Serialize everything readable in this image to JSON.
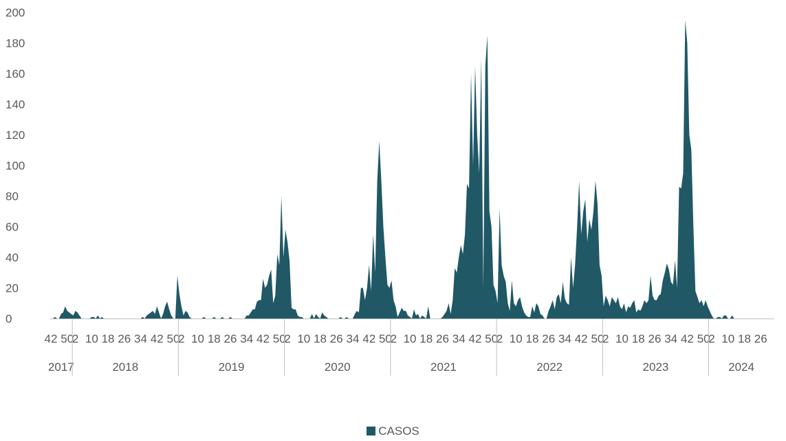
{
  "colors": {
    "series": "#205866",
    "axis": "#bfbfbf",
    "text": "#595959"
  },
  "chart_data": {
    "type": "area",
    "title": "",
    "xlabel": "",
    "ylabel": "",
    "ylim": [
      0,
      200
    ],
    "yticks": [
      "0",
      "20",
      "40",
      "60",
      "80",
      "100",
      "120",
      "140",
      "160",
      "180",
      "200"
    ],
    "grid": false,
    "legend_position": "bottom",
    "x_start": {
      "year": 2017,
      "week": 42
    },
    "week_tick_step": 8,
    "years": [
      {
        "label": "2017",
        "weeks": 11
      },
      {
        "label": "2018",
        "weeks": 52
      },
      {
        "label": "2019",
        "weeks": 52
      },
      {
        "label": "2020",
        "weeks": 52
      },
      {
        "label": "2021",
        "weeks": 52
      },
      {
        "label": "2022",
        "weeks": 52
      },
      {
        "label": "2023",
        "weeks": 52
      },
      {
        "label": "2024",
        "weeks": 32
      }
    ],
    "series": [
      {
        "name": "CASOS",
        "values": [
          0,
          0,
          1,
          0,
          0,
          3,
          4,
          8,
          5,
          4,
          3,
          2,
          5,
          4,
          2,
          0,
          0,
          0,
          0,
          0,
          1,
          1,
          0,
          2,
          0,
          1,
          0,
          0,
          0,
          0,
          0,
          0,
          0,
          0,
          0,
          0,
          0,
          0,
          0,
          0,
          0,
          0,
          0,
          0,
          0,
          1,
          0,
          2,
          3,
          4,
          5,
          3,
          8,
          4,
          0,
          3,
          8,
          11,
          6,
          2,
          0,
          0,
          28,
          16,
          8,
          2,
          5,
          4,
          1,
          0,
          0,
          0,
          0,
          0,
          0,
          1,
          0,
          0,
          0,
          0,
          1,
          0,
          0,
          0,
          1,
          0,
          0,
          0,
          1,
          0,
          0,
          0,
          0,
          0,
          0,
          0,
          2,
          2,
          4,
          6,
          6,
          11,
          12,
          12,
          26,
          20,
          22,
          28,
          32,
          10,
          15,
          42,
          35,
          80,
          40,
          58,
          50,
          38,
          7,
          6,
          6,
          2,
          1,
          1,
          0,
          0,
          0,
          0,
          3,
          0,
          3,
          1,
          0,
          4,
          2,
          1,
          0,
          0,
          0,
          0,
          0,
          0,
          1,
          0,
          0,
          1,
          0,
          0,
          0,
          3,
          5,
          4,
          20,
          20,
          12,
          20,
          35,
          18,
          55,
          30,
          90,
          116,
          90,
          60,
          40,
          22,
          20,
          25,
          12,
          8,
          1,
          4,
          7,
          5,
          5,
          2,
          1,
          0,
          6,
          2,
          3,
          0,
          2,
          1,
          0,
          8,
          0,
          0,
          0,
          0,
          0,
          0,
          1,
          3,
          5,
          10,
          3,
          12,
          33,
          30,
          40,
          48,
          42,
          55,
          88,
          85,
          160,
          100,
          165,
          120,
          95,
          170,
          20,
          165,
          185,
          70,
          60,
          22,
          18,
          10,
          72,
          35,
          28,
          24,
          10,
          5,
          25,
          10,
          8,
          12,
          14,
          8,
          4,
          2,
          1,
          1,
          8,
          4,
          10,
          8,
          3,
          2,
          0,
          0,
          5,
          8,
          12,
          6,
          14,
          16,
          10,
          24,
          13,
          10,
          9,
          40,
          20,
          35,
          60,
          90,
          55,
          70,
          78,
          50,
          65,
          58,
          70,
          90,
          75,
          35,
          28,
          8,
          15,
          12,
          8,
          14,
          12,
          10,
          14,
          8,
          6,
          10,
          4,
          8,
          7,
          10,
          12,
          4,
          6,
          5,
          8,
          12,
          10,
          12,
          28,
          15,
          12,
          12,
          15,
          16,
          25,
          30,
          36,
          32,
          24,
          22,
          38,
          20,
          86,
          85,
          95,
          195,
          180,
          120,
          110,
          60,
          18,
          14,
          10,
          12,
          8,
          12,
          8,
          5,
          2,
          0,
          0,
          1,
          1,
          0,
          2,
          2,
          0,
          0,
          2,
          0,
          0,
          0,
          0,
          0,
          0,
          0,
          0,
          0,
          0,
          0,
          0,
          0,
          0,
          0,
          0,
          0,
          0,
          0,
          0
        ]
      }
    ]
  },
  "legend": {
    "label": "CASOS"
  }
}
